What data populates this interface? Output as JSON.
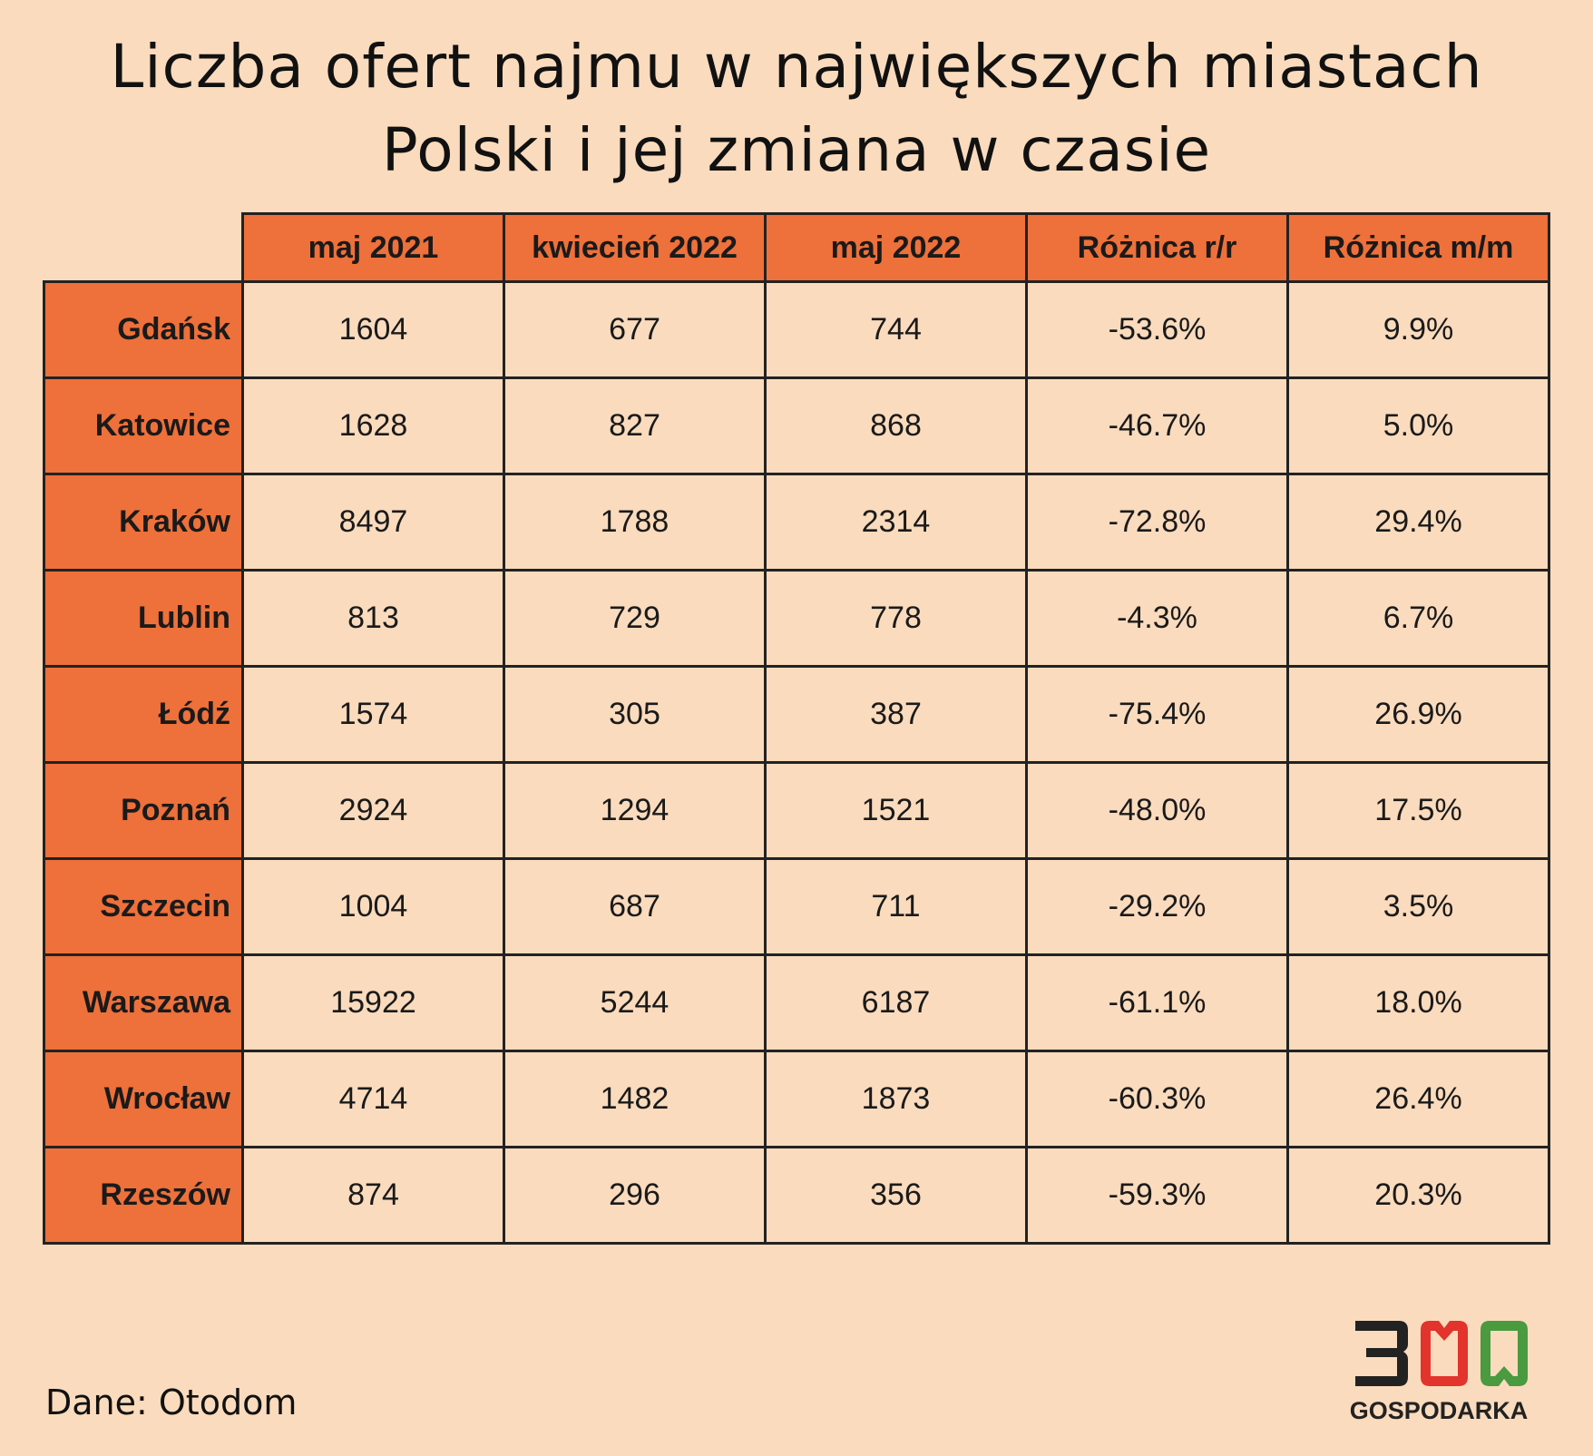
{
  "title_lines": [
    "Liczba ofert najmu w największych miastach",
    "Polski i jej zmiana w czasie"
  ],
  "source": "Dane: Otodom",
  "logo": {
    "digits": "300",
    "wordmark": "GOSPODARKA",
    "colors": {
      "three": "#222222",
      "zero1": "#e2332c",
      "zero2": "#4a9a3f"
    }
  },
  "colors": {
    "background": "#fadbbd",
    "header": "#ee703a",
    "border": "#222222"
  },
  "chart_data": {
    "type": "table",
    "title": "Liczba ofert najmu w największych miastach Polski i jej zmiana w czasie",
    "columns": [
      "maj 2021",
      "kwiecień 2022",
      "maj 2022",
      "Różnica r/r",
      "Różnica m/m"
    ],
    "rows": [
      {
        "city": "Gdańsk",
        "values": [
          "1604",
          "677",
          "744",
          "-53.6%",
          "9.9%"
        ]
      },
      {
        "city": "Katowice",
        "values": [
          "1628",
          "827",
          "868",
          "-46.7%",
          "5.0%"
        ]
      },
      {
        "city": "Kraków",
        "values": [
          "8497",
          "1788",
          "2314",
          "-72.8%",
          "29.4%"
        ]
      },
      {
        "city": "Lublin",
        "values": [
          "813",
          "729",
          "778",
          "-4.3%",
          "6.7%"
        ]
      },
      {
        "city": "Łódź",
        "values": [
          "1574",
          "305",
          "387",
          "-75.4%",
          "26.9%"
        ]
      },
      {
        "city": "Poznań",
        "values": [
          "2924",
          "1294",
          "1521",
          "-48.0%",
          "17.5%"
        ]
      },
      {
        "city": "Szczecin",
        "values": [
          "1004",
          "687",
          "711",
          "-29.2%",
          "3.5%"
        ]
      },
      {
        "city": "Warszawa",
        "values": [
          "15922",
          "5244",
          "6187",
          "-61.1%",
          "18.0%"
        ]
      },
      {
        "city": "Wrocław",
        "values": [
          "4714",
          "1482",
          "1873",
          "-60.3%",
          "26.4%"
        ]
      },
      {
        "city": "Rzeszów",
        "values": [
          "874",
          "296",
          "356",
          "-59.3%",
          "20.3%"
        ]
      }
    ]
  }
}
